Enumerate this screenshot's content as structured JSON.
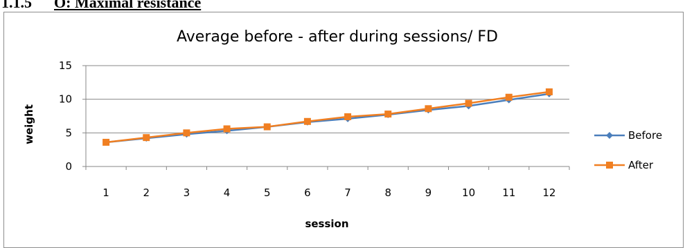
{
  "section": {
    "number": "1.1.5",
    "title": "O: Maximal resistance"
  },
  "chart_data": {
    "type": "line",
    "title": "Average before - after during sessions/ FD",
    "xlabel": "session",
    "ylabel": "weight",
    "categories": [
      "1",
      "2",
      "3",
      "4",
      "5",
      "6",
      "7",
      "8",
      "9",
      "10",
      "11",
      "12"
    ],
    "ylim": [
      0,
      15
    ],
    "yticks": [
      "0",
      "5",
      "10",
      "15"
    ],
    "grid": true,
    "legend_position": "right",
    "series": [
      {
        "name": "Before",
        "color": "#4a7ebb",
        "marker": "diamond",
        "values": [
          3.6,
          4.2,
          4.8,
          5.3,
          5.9,
          6.6,
          7.1,
          7.7,
          8.4,
          9.0,
          9.9,
          10.8
        ]
      },
      {
        "name": "After",
        "color": "#f07f22",
        "marker": "square",
        "values": [
          3.6,
          4.3,
          5.0,
          5.6,
          5.9,
          6.7,
          7.4,
          7.8,
          8.6,
          9.4,
          10.3,
          11.1
        ]
      }
    ]
  }
}
